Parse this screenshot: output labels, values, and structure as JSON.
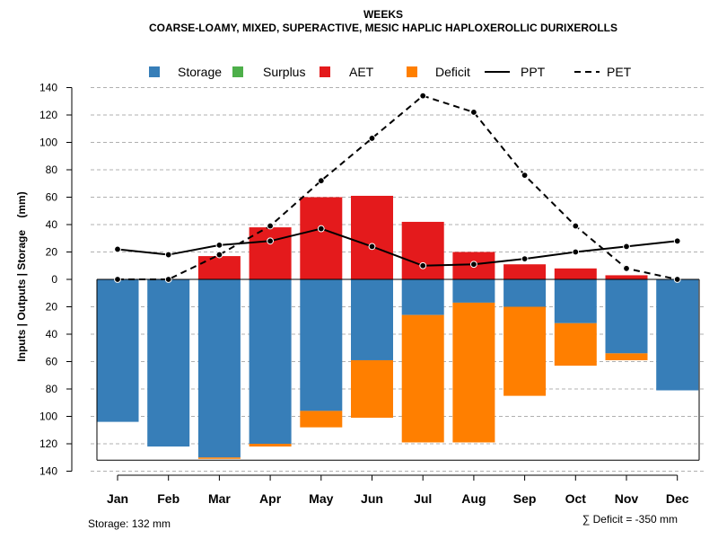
{
  "chart_data": {
    "type": "bar",
    "title": "WEEKS",
    "subtitle": "COARSE-LOAMY, MIXED, SUPERACTIVE, MESIC HAPLIC HAPLOXEROLLIC DURIXEROLLS",
    "ylabel": "Inputs | Outputs | Storage    (mm)",
    "xlabel": "",
    "categories": [
      "Jan",
      "Feb",
      "Mar",
      "Apr",
      "May",
      "Jun",
      "Jul",
      "Aug",
      "Sep",
      "Oct",
      "Nov",
      "Dec"
    ],
    "ylim": [
      -140,
      140
    ],
    "yticks": [
      140,
      120,
      100,
      80,
      60,
      40,
      20,
      0,
      -20,
      -40,
      -60,
      -80,
      -100,
      -120,
      -140
    ],
    "ytick_labels": [
      "140",
      "120",
      "100",
      "80",
      "60",
      "40",
      "20",
      "0",
      "20",
      "40",
      "60",
      "80",
      "100",
      "120",
      "140"
    ],
    "grid": true,
    "legend_position": "top",
    "legend": [
      {
        "name": "Storage",
        "kind": "box",
        "color": "#377EB8"
      },
      {
        "name": "Surplus",
        "kind": "box",
        "color": "#4DAF4A"
      },
      {
        "name": "AET",
        "kind": "box",
        "color": "#E41A1C"
      },
      {
        "name": "Deficit",
        "kind": "box",
        "color": "#FF7F00"
      },
      {
        "name": "PPT",
        "kind": "line",
        "color": "#000000",
        "dash": "solid"
      },
      {
        "name": "PET",
        "kind": "line",
        "color": "#000000",
        "dash": "dashed"
      }
    ],
    "series": [
      {
        "name": "Storage",
        "stack": "below",
        "color": "#377EB8",
        "values": [
          104,
          122,
          130,
          120,
          96,
          59,
          26,
          17,
          20,
          32,
          54,
          81
        ]
      },
      {
        "name": "Deficit",
        "stack": "below",
        "color": "#FF7F00",
        "values": [
          0,
          0,
          1,
          2,
          12,
          42,
          93,
          102,
          65,
          31,
          5,
          0
        ]
      },
      {
        "name": "Surplus",
        "stack": "above",
        "color": "#4DAF4A",
        "values": [
          0,
          0,
          0,
          0,
          0,
          0,
          0,
          0,
          0,
          0,
          0,
          0
        ]
      },
      {
        "name": "AET",
        "stack": "above",
        "color": "#E41A1C",
        "values": [
          0,
          0,
          17,
          38,
          60,
          61,
          42,
          20,
          11,
          8,
          3,
          0
        ]
      },
      {
        "name": "PPT",
        "type": "line",
        "color": "#000000",
        "values": [
          22,
          18,
          25,
          28,
          37,
          24,
          10,
          11,
          15,
          20,
          24,
          28
        ]
      },
      {
        "name": "PET",
        "type": "line",
        "color": "#000000",
        "dashed": true,
        "values": [
          0,
          0,
          18,
          39,
          72,
          103,
          134,
          122,
          76,
          39,
          8,
          0
        ]
      }
    ],
    "storage_capacity": 132,
    "annotations": {
      "storage_label": "Storage: 132 mm",
      "deficit_label": "∑ Deficit = -350 mm"
    }
  }
}
